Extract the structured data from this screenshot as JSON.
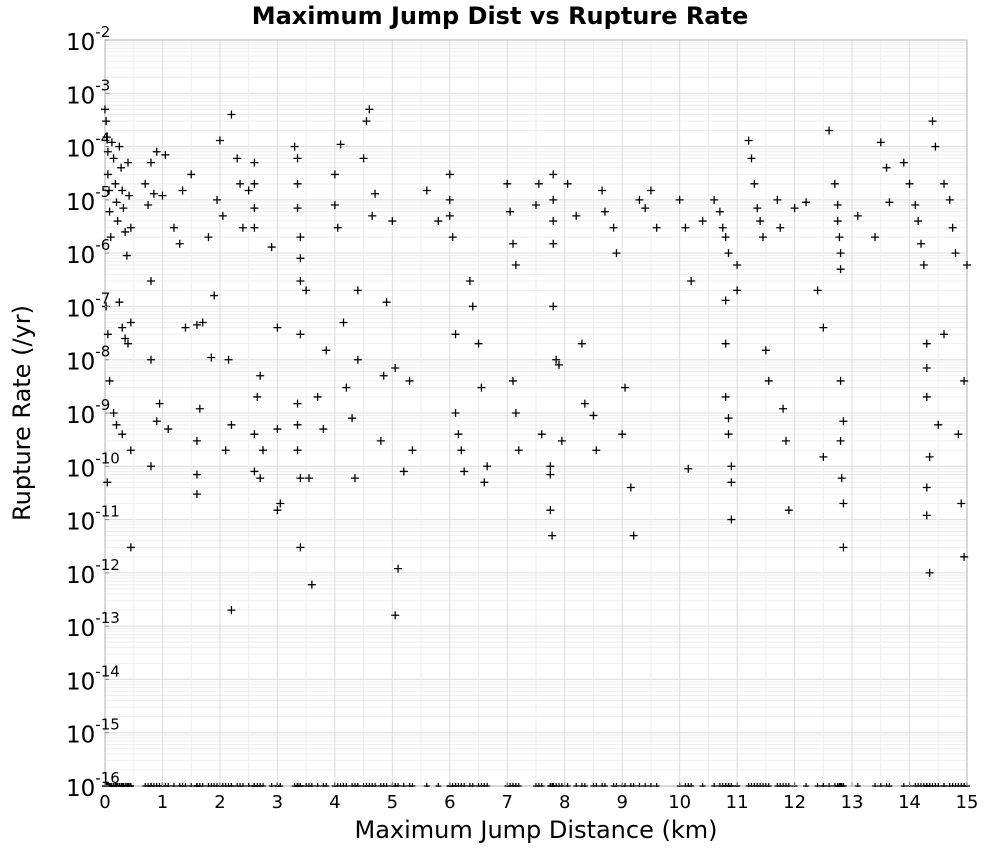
{
  "chart_data": {
    "type": "scatter",
    "title": "Maximum Jump Dist vs Rupture Rate",
    "xlabel": "Maximum Jump Distance (km)",
    "ylabel": "Rupture Rate (/yr)",
    "xlim": [
      0,
      15
    ],
    "ylim": [
      1e-16,
      0.01
    ],
    "y_scale": "log",
    "grid": true,
    "marker": "+",
    "marker_color": "#000000",
    "x_ticks": [
      "0",
      "1",
      "2",
      "3",
      "4",
      "5",
      "6",
      "7",
      "8",
      "9",
      "10",
      "11",
      "12",
      "13",
      "14",
      "15"
    ],
    "y_ticks": [
      {
        "base": "10",
        "exp": "-16"
      },
      {
        "base": "10",
        "exp": "-15"
      },
      {
        "base": "10",
        "exp": "-14"
      },
      {
        "base": "10",
        "exp": "-13"
      },
      {
        "base": "10",
        "exp": "-12"
      },
      {
        "base": "10",
        "exp": "-11"
      },
      {
        "base": "10",
        "exp": "-10"
      },
      {
        "base": "10",
        "exp": "-9"
      },
      {
        "base": "10",
        "exp": "-8"
      },
      {
        "base": "10",
        "exp": "-7"
      },
      {
        "base": "10",
        "exp": "-6"
      },
      {
        "base": "10",
        "exp": "-5"
      },
      {
        "base": "10",
        "exp": "-4"
      },
      {
        "base": "10",
        "exp": "-3"
      },
      {
        "base": "10",
        "exp": "-2"
      }
    ],
    "points": [
      [
        0.0,
        0.0005
      ],
      [
        0.02,
        0.0003
      ],
      [
        0.03,
        0.00015
      ],
      [
        0.05,
        8e-05
      ],
      [
        0.05,
        3e-05
      ],
      [
        0.07,
        1.5e-05
      ],
      [
        0.08,
        6e-06
      ],
      [
        0.1,
        2e-06
      ],
      [
        0.12,
        0.00012
      ],
      [
        0.15,
        6e-05
      ],
      [
        0.18,
        2e-05
      ],
      [
        0.2,
        9e-06
      ],
      [
        0.22,
        4e-06
      ],
      [
        0.25,
        0.0001
      ],
      [
        0.28,
        4e-05
      ],
      [
        0.3,
        1.5e-05
      ],
      [
        0.32,
        7e-06
      ],
      [
        0.35,
        2.5e-06
      ],
      [
        0.38,
        9e-07
      ],
      [
        0.4,
        5e-05
      ],
      [
        0.42,
        1.2e-05
      ],
      [
        0.45,
        3e-06
      ],
      [
        0.02,
        1e-07
      ],
      [
        0.05,
        3e-08
      ],
      [
        0.08,
        4e-09
      ],
      [
        0.04,
        5e-11
      ],
      [
        0.25,
        1.2e-07
      ],
      [
        0.3,
        4e-08
      ],
      [
        0.35,
        2.5e-08
      ],
      [
        0.4,
        2e-08
      ],
      [
        0.45,
        5e-08
      ],
      [
        0.15,
        1e-09
      ],
      [
        0.2,
        6e-10
      ],
      [
        0.3,
        4e-10
      ],
      [
        0.45,
        2e-10
      ],
      [
        0.45,
        3e-12
      ],
      [
        0.8,
        1e-08
      ],
      [
        0.8,
        1e-10
      ],
      [
        0.9,
        7e-10
      ],
      [
        0.95,
        1.5e-09
      ],
      [
        0.8,
        3e-07
      ],
      [
        0.7,
        2e-05
      ],
      [
        0.75,
        8e-06
      ],
      [
        0.8,
        5e-05
      ],
      [
        0.85,
        1.3e-05
      ],
      [
        0.9,
        8e-05
      ],
      [
        1.0,
        1.2e-05
      ],
      [
        1.05,
        7e-05
      ],
      [
        1.2,
        3e-06
      ],
      [
        1.3,
        1.5e-06
      ],
      [
        1.35,
        1.5e-05
      ],
      [
        1.1,
        5e-10
      ],
      [
        1.4,
        4e-08
      ],
      [
        1.5,
        3e-05
      ],
      [
        1.6,
        4.5e-08
      ],
      [
        1.65,
        1.2e-09
      ],
      [
        1.7,
        5e-08
      ],
      [
        1.6,
        3e-10
      ],
      [
        1.6,
        3e-11
      ],
      [
        1.6,
        7e-11
      ],
      [
        1.8,
        2e-06
      ],
      [
        1.85,
        1.1e-08
      ],
      [
        1.9,
        1.6e-07
      ],
      [
        1.95,
        1e-05
      ],
      [
        2.0,
        0.00013
      ],
      [
        2.05,
        5e-06
      ],
      [
        2.1,
        2e-10
      ],
      [
        2.15,
        1e-08
      ],
      [
        2.2,
        0.0004
      ],
      [
        2.2,
        6e-10
      ],
      [
        2.2,
        2e-13
      ],
      [
        2.3,
        6e-05
      ],
      [
        2.35,
        2e-05
      ],
      [
        2.4,
        3e-06
      ],
      [
        2.5,
        1.5e-05
      ],
      [
        2.6,
        5e-05
      ],
      [
        2.6,
        2e-05
      ],
      [
        2.6,
        7e-06
      ],
      [
        2.6,
        3e-06
      ],
      [
        2.6,
        4e-10
      ],
      [
        2.6,
        8e-11
      ],
      [
        2.65,
        2e-09
      ],
      [
        2.7,
        6e-11
      ],
      [
        2.7,
        5e-09
      ],
      [
        2.75,
        2e-10
      ],
      [
        2.9,
        1.3e-06
      ],
      [
        3.0,
        4e-08
      ],
      [
        3.0,
        5e-10
      ],
      [
        3.0,
        1.5e-11
      ],
      [
        3.05,
        2e-11
      ],
      [
        3.3,
        0.0001
      ],
      [
        3.35,
        6e-05
      ],
      [
        3.35,
        2e-05
      ],
      [
        3.35,
        7e-06
      ],
      [
        3.4,
        2e-06
      ],
      [
        3.4,
        8e-07
      ],
      [
        3.4,
        3e-07
      ],
      [
        3.35,
        6e-10
      ],
      [
        3.35,
        1.5e-09
      ],
      [
        3.35,
        2e-10
      ],
      [
        3.4,
        6e-11
      ],
      [
        3.4,
        3e-12
      ],
      [
        3.4,
        3e-08
      ],
      [
        3.5,
        2e-07
      ],
      [
        3.55,
        6e-11
      ],
      [
        3.6,
        6e-13
      ],
      [
        3.7,
        2e-09
      ],
      [
        3.8,
        5e-10
      ],
      [
        3.85,
        1.5e-08
      ],
      [
        4.0,
        3e-05
      ],
      [
        4.0,
        8e-06
      ],
      [
        4.05,
        3e-06
      ],
      [
        4.1,
        0.00011
      ],
      [
        4.15,
        5e-08
      ],
      [
        4.2,
        3e-09
      ],
      [
        4.3,
        8e-10
      ],
      [
        4.35,
        6e-11
      ],
      [
        4.4,
        2e-07
      ],
      [
        4.4,
        1e-08
      ],
      [
        4.5,
        6e-05
      ],
      [
        4.55,
        0.0003
      ],
      [
        4.6,
        0.0005
      ],
      [
        4.65,
        5e-06
      ],
      [
        4.7,
        1.3e-05
      ],
      [
        4.8,
        3e-10
      ],
      [
        4.85,
        5e-09
      ],
      [
        4.9,
        1.2e-07
      ],
      [
        5.0,
        4e-06
      ],
      [
        5.05,
        7e-09
      ],
      [
        5.05,
        1.6e-13
      ],
      [
        5.1,
        1.2e-12
      ],
      [
        5.2,
        8e-11
      ],
      [
        5.3,
        4e-09
      ],
      [
        5.35,
        2e-10
      ],
      [
        5.6,
        1.5e-05
      ],
      [
        5.8,
        4e-06
      ],
      [
        6.0,
        3e-05
      ],
      [
        6.0,
        1e-05
      ],
      [
        6.0,
        5e-06
      ],
      [
        6.05,
        2e-06
      ],
      [
        6.1,
        3e-08
      ],
      [
        6.1,
        1e-09
      ],
      [
        6.15,
        4e-10
      ],
      [
        6.2,
        2e-10
      ],
      [
        6.25,
        8e-11
      ],
      [
        6.35,
        3e-07
      ],
      [
        6.4,
        1e-07
      ],
      [
        6.5,
        2e-08
      ],
      [
        6.55,
        3e-09
      ],
      [
        6.6,
        5e-11
      ],
      [
        6.65,
        1e-10
      ],
      [
        7.0,
        2e-05
      ],
      [
        7.05,
        6e-06
      ],
      [
        7.1,
        1.5e-06
      ],
      [
        7.15,
        6e-07
      ],
      [
        7.1,
        4e-09
      ],
      [
        7.15,
        1e-09
      ],
      [
        7.2,
        2e-10
      ],
      [
        7.5,
        8e-06
      ],
      [
        7.55,
        2e-05
      ],
      [
        7.6,
        4e-10
      ],
      [
        7.75,
        1e-10
      ],
      [
        7.75,
        7e-11
      ],
      [
        7.75,
        1.5e-11
      ],
      [
        7.78,
        5e-12
      ],
      [
        7.8,
        3e-05
      ],
      [
        7.8,
        1e-05
      ],
      [
        7.8,
        4e-06
      ],
      [
        7.8,
        1.5e-06
      ],
      [
        7.8,
        1e-07
      ],
      [
        7.85,
        1e-08
      ],
      [
        7.9,
        8e-09
      ],
      [
        7.95,
        3e-10
      ],
      [
        8.05,
        2e-05
      ],
      [
        8.2,
        5e-06
      ],
      [
        8.3,
        2e-08
      ],
      [
        8.35,
        1.5e-09
      ],
      [
        8.5,
        9e-10
      ],
      [
        8.55,
        2e-10
      ],
      [
        8.65,
        1.5e-05
      ],
      [
        8.7,
        6e-06
      ],
      [
        8.85,
        3e-06
      ],
      [
        8.9,
        1e-06
      ],
      [
        9.0,
        4e-10
      ],
      [
        9.05,
        3e-09
      ],
      [
        9.15,
        4e-11
      ],
      [
        9.2,
        5e-12
      ],
      [
        9.3,
        1e-05
      ],
      [
        9.4,
        7e-06
      ],
      [
        9.5,
        1.5e-05
      ],
      [
        9.6,
        3e-06
      ],
      [
        10.0,
        1e-05
      ],
      [
        10.1,
        3e-06
      ],
      [
        10.15,
        9e-11
      ],
      [
        10.2,
        3e-07
      ],
      [
        10.4,
        4e-06
      ],
      [
        10.6,
        1e-05
      ],
      [
        10.7,
        6e-06
      ],
      [
        10.75,
        3e-06
      ],
      [
        10.8,
        2e-06
      ],
      [
        10.85,
        1e-06
      ],
      [
        10.8,
        1.3e-07
      ],
      [
        10.8,
        2e-08
      ],
      [
        10.8,
        2e-09
      ],
      [
        10.85,
        8e-10
      ],
      [
        10.85,
        4e-10
      ],
      [
        10.9,
        1e-10
      ],
      [
        10.9,
        5e-11
      ],
      [
        10.9,
        1e-11
      ],
      [
        11.0,
        6e-07
      ],
      [
        11.0,
        2e-07
      ],
      [
        11.2,
        0.00013
      ],
      [
        11.25,
        6e-05
      ],
      [
        11.3,
        2e-05
      ],
      [
        11.35,
        7e-06
      ],
      [
        11.4,
        4e-06
      ],
      [
        11.45,
        2e-06
      ],
      [
        11.5,
        1.5e-08
      ],
      [
        11.55,
        4e-09
      ],
      [
        11.7,
        1e-05
      ],
      [
        11.75,
        3e-06
      ],
      [
        11.8,
        1.2e-09
      ],
      [
        11.85,
        3e-10
      ],
      [
        11.9,
        1.5e-11
      ],
      [
        12.0,
        7e-06
      ],
      [
        12.2,
        9e-06
      ],
      [
        12.4,
        2e-07
      ],
      [
        12.5,
        4e-08
      ],
      [
        12.5,
        1.5e-10
      ],
      [
        12.6,
        0.0002
      ],
      [
        12.7,
        2e-05
      ],
      [
        12.75,
        8e-06
      ],
      [
        12.75,
        4e-06
      ],
      [
        12.78,
        2e-06
      ],
      [
        12.8,
        1e-06
      ],
      [
        12.8,
        5e-07
      ],
      [
        12.8,
        4e-09
      ],
      [
        12.85,
        7e-10
      ],
      [
        12.8,
        3e-10
      ],
      [
        12.82,
        6e-11
      ],
      [
        12.85,
        2e-11
      ],
      [
        12.85,
        3e-12
      ],
      [
        13.1,
        5e-06
      ],
      [
        13.4,
        2e-06
      ],
      [
        13.5,
        0.00012
      ],
      [
        13.6,
        4e-05
      ],
      [
        13.65,
        9e-06
      ],
      [
        13.9,
        5e-05
      ],
      [
        14.0,
        2e-05
      ],
      [
        14.1,
        8e-06
      ],
      [
        14.15,
        4e-06
      ],
      [
        14.2,
        1.5e-06
      ],
      [
        14.25,
        6e-07
      ],
      [
        14.3,
        2e-08
      ],
      [
        14.3,
        7e-09
      ],
      [
        14.3,
        2e-09
      ],
      [
        14.35,
        1.5e-10
      ],
      [
        14.3,
        4e-11
      ],
      [
        14.3,
        1.2e-11
      ],
      [
        14.35,
        1e-12
      ],
      [
        14.4,
        0.0003
      ],
      [
        14.45,
        0.0001
      ],
      [
        14.5,
        6e-10
      ],
      [
        14.6,
        3e-08
      ],
      [
        14.6,
        2e-05
      ],
      [
        14.7,
        1e-05
      ],
      [
        14.75,
        3e-06
      ],
      [
        14.8,
        1e-06
      ],
      [
        14.85,
        4e-10
      ],
      [
        14.9,
        2e-11
      ],
      [
        14.95,
        2e-12
      ],
      [
        15.0,
        6e-07
      ],
      [
        14.95,
        4e-09
      ]
    ]
  }
}
